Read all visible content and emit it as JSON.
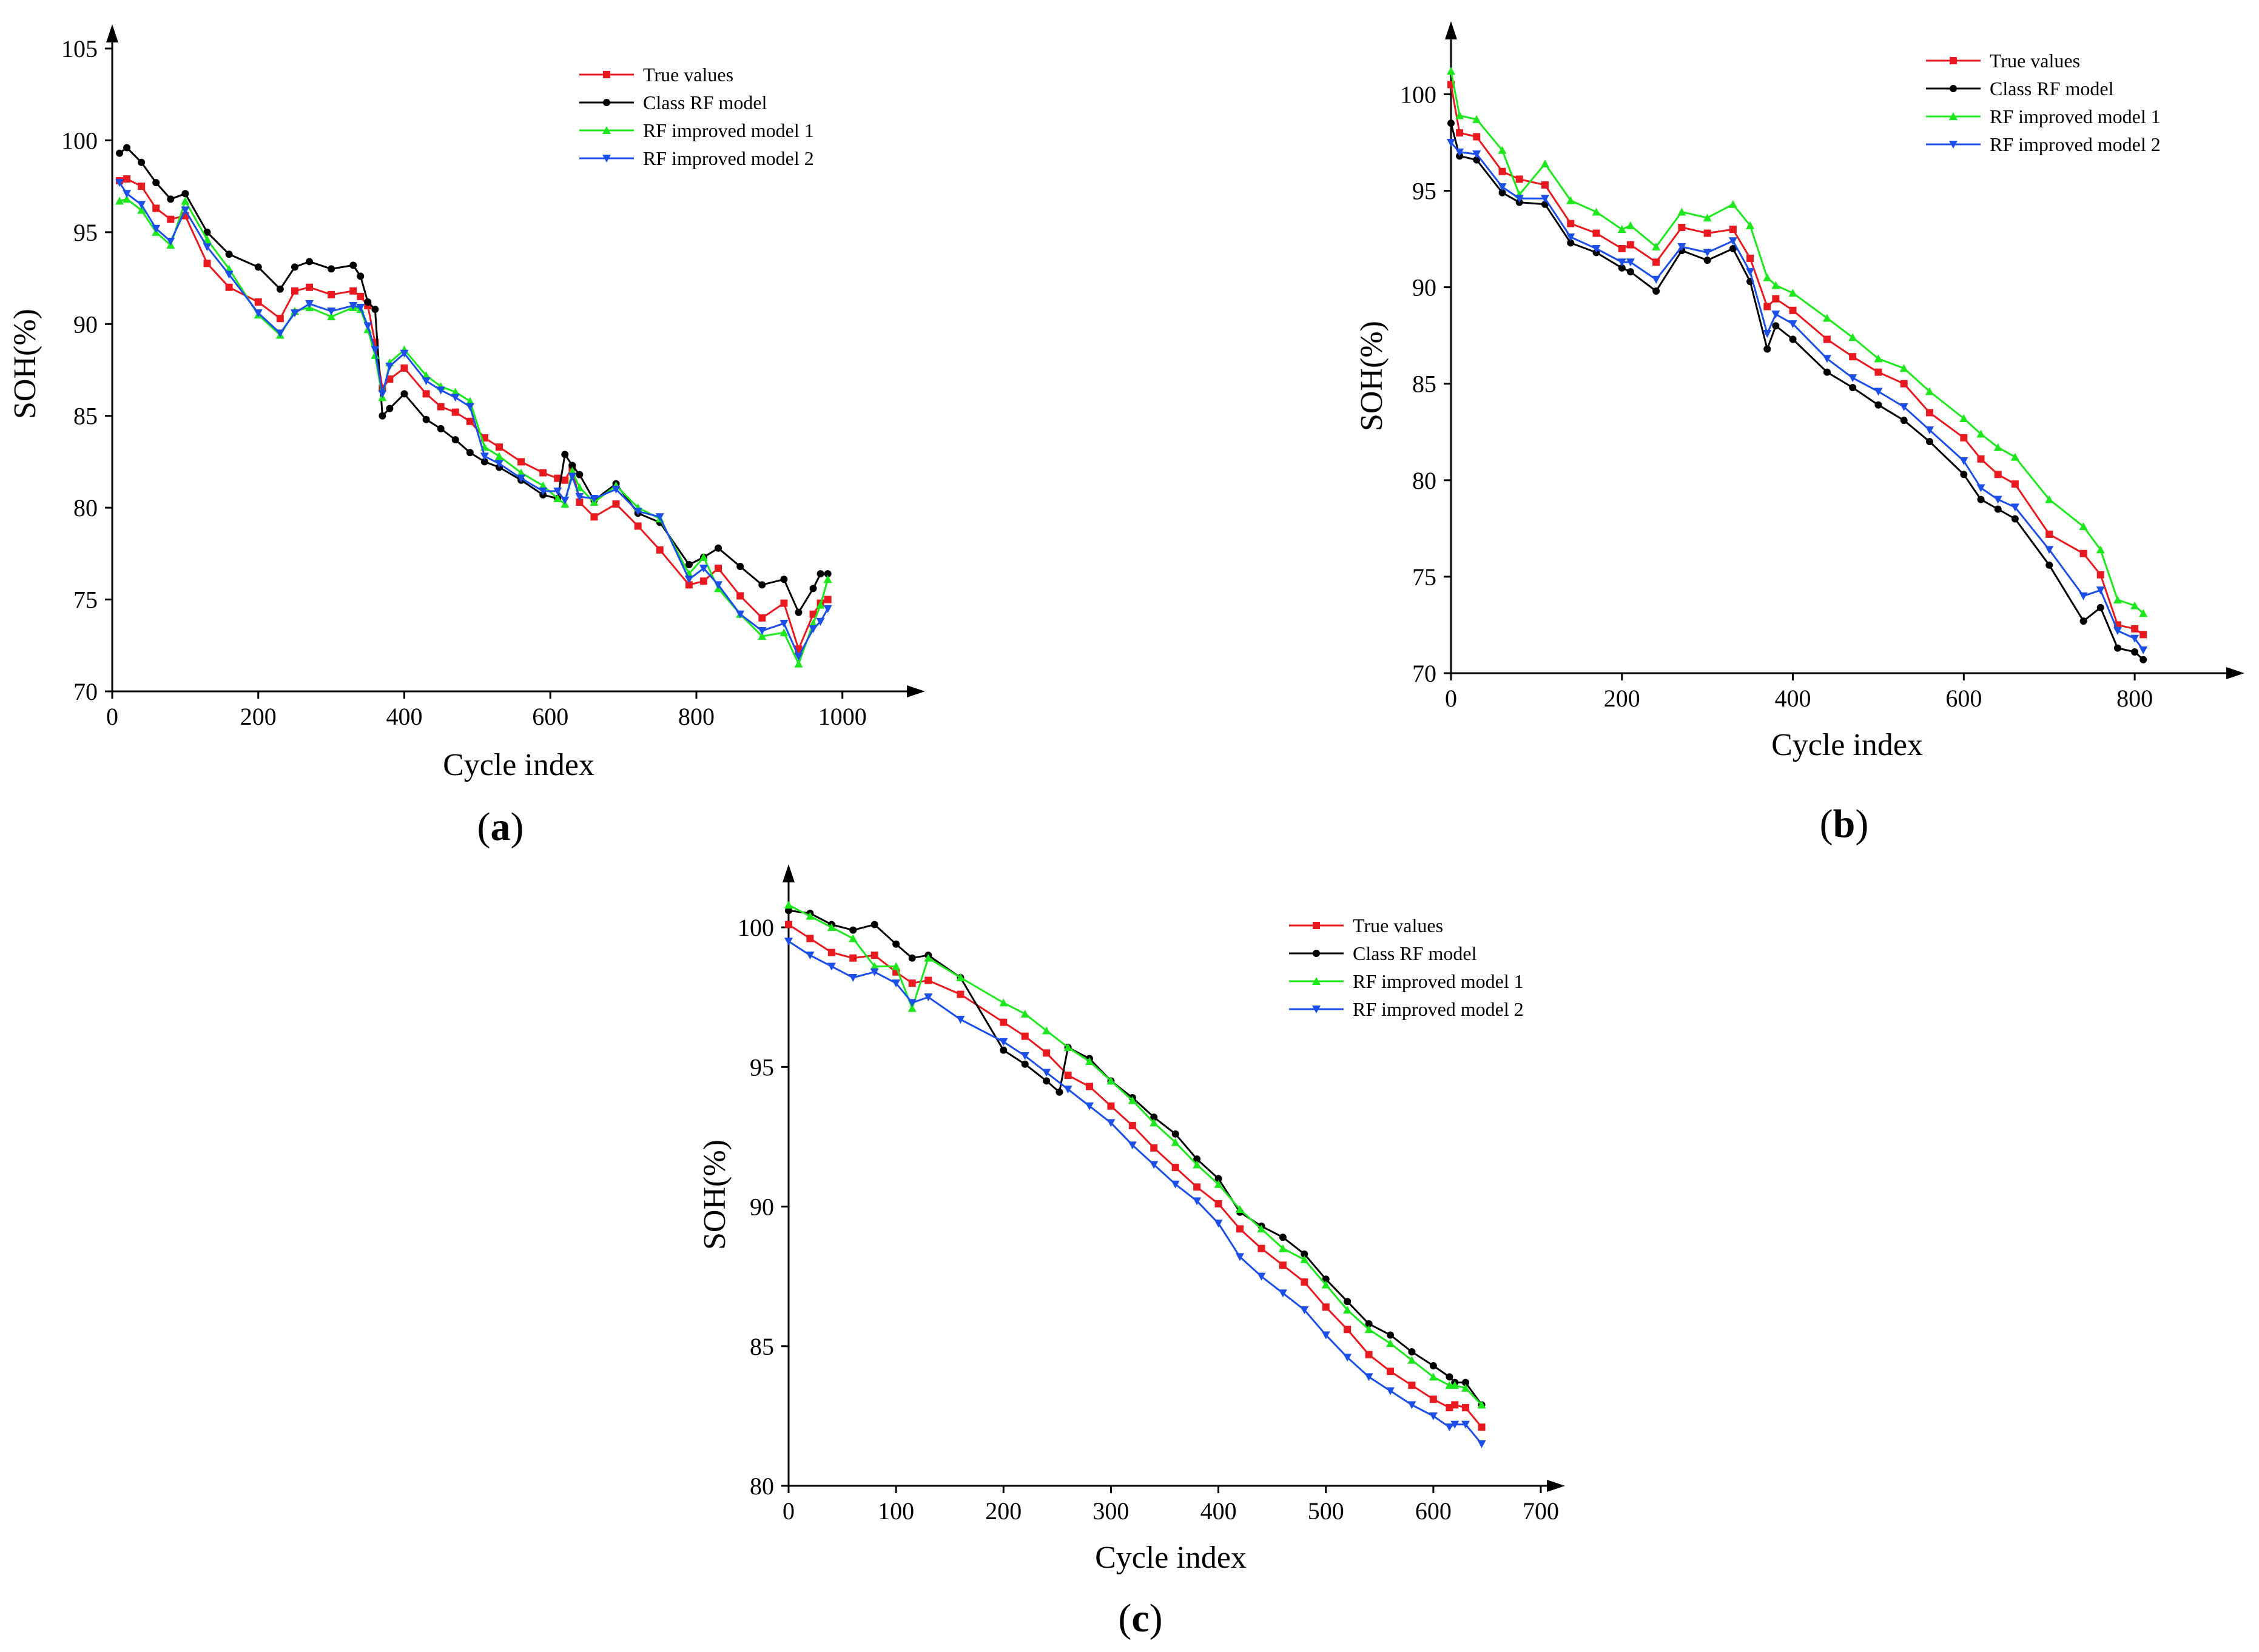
{
  "figure": {
    "series_names": [
      "True values",
      "Class RF model",
      "RF improved model 1",
      "RF improved model 2"
    ],
    "series_colors": [
      "#e8191f",
      "#000000",
      "#1de81d",
      "#1c4ee8"
    ],
    "series_markers": [
      "square",
      "circle",
      "triangle-up",
      "triangle-down"
    ]
  },
  "chart_data": [
    {
      "panel": "a",
      "type": "line",
      "label_open": "(",
      "label_letter": "a",
      "label_close": ")",
      "xlabel": "Cycle index",
      "ylabel": "SOH(%)",
      "xlim": [
        0,
        1080
      ],
      "ylim": [
        70,
        105
      ],
      "xticks": [
        0,
        200,
        400,
        600,
        800,
        1000
      ],
      "yticks": [
        70,
        75,
        80,
        85,
        90,
        95,
        100,
        105
      ],
      "series": [
        {
          "name": "True values",
          "x": [
            10,
            20,
            40,
            60,
            80,
            100,
            130,
            160,
            200,
            230,
            250,
            270,
            300,
            330,
            340,
            350,
            360,
            370,
            380,
            400,
            430,
            450,
            470,
            490,
            510,
            530,
            560,
            590,
            610,
            620,
            630,
            640,
            660,
            690,
            720,
            750,
            790,
            810,
            830,
            860,
            890,
            920,
            940,
            960,
            970,
            980
          ],
          "y": [
            97.8,
            97.9,
            97.5,
            96.3,
            95.7,
            95.9,
            93.3,
            92.0,
            91.2,
            90.3,
            91.8,
            92.0,
            91.6,
            91.8,
            91.5,
            91.0,
            89.0,
            86.5,
            87.0,
            87.6,
            86.2,
            85.5,
            85.2,
            84.7,
            83.8,
            83.3,
            82.5,
            81.9,
            81.6,
            81.5,
            82.2,
            80.3,
            79.5,
            80.2,
            79.0,
            77.7,
            75.8,
            76.0,
            76.7,
            75.2,
            74.0,
            74.8,
            72.3,
            74.2,
            74.8,
            75.0
          ]
        },
        {
          "name": "Class RF model",
          "x": [
            10,
            20,
            40,
            60,
            80,
            100,
            130,
            160,
            200,
            230,
            250,
            270,
            300,
            330,
            340,
            350,
            360,
            370,
            380,
            400,
            430,
            450,
            470,
            490,
            510,
            530,
            560,
            590,
            610,
            620,
            630,
            640,
            660,
            690,
            720,
            750,
            790,
            810,
            830,
            860,
            890,
            920,
            940,
            960,
            970,
            980
          ],
          "y": [
            99.3,
            99.6,
            98.8,
            97.7,
            96.8,
            97.1,
            95.0,
            93.8,
            93.1,
            91.9,
            93.1,
            93.4,
            93.0,
            93.2,
            92.6,
            91.2,
            90.8,
            85.0,
            85.4,
            86.2,
            84.8,
            84.3,
            83.7,
            83.0,
            82.5,
            82.2,
            81.5,
            80.7,
            80.5,
            82.9,
            82.3,
            81.8,
            80.4,
            81.3,
            79.7,
            79.2,
            76.9,
            77.3,
            77.8,
            76.8,
            75.8,
            76.1,
            74.3,
            75.6,
            76.4,
            76.4
          ]
        },
        {
          "name": "RF improved model 1",
          "x": [
            10,
            20,
            40,
            60,
            80,
            100,
            130,
            160,
            200,
            230,
            250,
            270,
            300,
            330,
            340,
            350,
            360,
            370,
            380,
            400,
            430,
            450,
            470,
            490,
            510,
            530,
            560,
            590,
            610,
            620,
            630,
            640,
            660,
            690,
            720,
            750,
            790,
            810,
            830,
            860,
            890,
            920,
            940,
            960,
            970,
            980
          ],
          "y": [
            96.7,
            96.8,
            96.2,
            95.0,
            94.3,
            96.7,
            94.6,
            93.0,
            90.5,
            89.4,
            90.7,
            90.9,
            90.4,
            90.9,
            90.8,
            89.7,
            88.3,
            86.0,
            87.9,
            88.6,
            87.2,
            86.6,
            86.3,
            85.8,
            83.3,
            82.8,
            81.9,
            81.2,
            80.5,
            80.2,
            82.0,
            81.1,
            80.3,
            81.2,
            80.0,
            79.4,
            76.4,
            77.3,
            75.6,
            74.2,
            73.0,
            73.2,
            71.5,
            73.7,
            74.7,
            76.1
          ]
        },
        {
          "name": "RF improved model 2",
          "x": [
            10,
            20,
            40,
            60,
            80,
            100,
            130,
            160,
            200,
            230,
            250,
            270,
            300,
            330,
            340,
            350,
            360,
            370,
            380,
            400,
            430,
            450,
            470,
            490,
            510,
            530,
            560,
            590,
            610,
            620,
            630,
            640,
            660,
            690,
            720,
            750,
            790,
            810,
            830,
            860,
            890,
            920,
            940,
            960,
            970,
            980
          ],
          "y": [
            97.7,
            97.1,
            96.5,
            95.2,
            94.5,
            96.2,
            94.2,
            92.7,
            90.6,
            89.5,
            90.6,
            91.1,
            90.7,
            91.0,
            90.9,
            89.9,
            88.6,
            86.2,
            87.7,
            88.4,
            86.9,
            86.4,
            86.0,
            85.5,
            82.8,
            82.4,
            81.6,
            80.9,
            80.9,
            80.4,
            81.7,
            80.6,
            80.5,
            81.0,
            79.8,
            79.5,
            76.1,
            76.7,
            75.8,
            74.2,
            73.3,
            73.7,
            71.9,
            73.4,
            73.8,
            74.5
          ]
        }
      ]
    },
    {
      "panel": "b",
      "type": "line",
      "label_open": "(",
      "label_letter": "b",
      "label_close": ")",
      "xlabel": "Cycle index",
      "ylabel": "SOH(%)",
      "xlim": [
        0,
        900
      ],
      "ylim": [
        70,
        103
      ],
      "xticks": [
        0,
        200,
        400,
        600,
        800
      ],
      "yticks": [
        70,
        75,
        80,
        85,
        90,
        95,
        100
      ],
      "series": [
        {
          "name": "True values",
          "x": [
            0,
            10,
            30,
            60,
            80,
            110,
            140,
            170,
            200,
            210,
            240,
            270,
            300,
            330,
            350,
            370,
            380,
            400,
            440,
            470,
            500,
            530,
            560,
            600,
            620,
            640,
            660,
            700,
            740,
            760,
            780,
            800,
            810
          ],
          "y": [
            100.5,
            98.0,
            97.8,
            96.0,
            95.6,
            95.3,
            93.3,
            92.8,
            92.0,
            92.2,
            91.3,
            93.1,
            92.8,
            93.0,
            91.5,
            89.0,
            89.4,
            88.8,
            87.3,
            86.4,
            85.6,
            85.0,
            83.5,
            82.2,
            81.1,
            80.3,
            79.8,
            77.2,
            76.2,
            75.1,
            72.5,
            72.3,
            72.0
          ]
        },
        {
          "name": "Class RF model",
          "x": [
            0,
            10,
            30,
            60,
            80,
            110,
            140,
            170,
            200,
            210,
            240,
            270,
            300,
            330,
            350,
            370,
            380,
            400,
            440,
            470,
            500,
            530,
            560,
            600,
            620,
            640,
            660,
            700,
            740,
            760,
            780,
            800,
            810
          ],
          "y": [
            98.5,
            96.8,
            96.6,
            94.9,
            94.4,
            94.3,
            92.3,
            91.8,
            91.0,
            90.8,
            89.8,
            91.9,
            91.4,
            92.0,
            90.3,
            86.8,
            88.0,
            87.3,
            85.6,
            84.8,
            83.9,
            83.1,
            82.0,
            80.3,
            79.0,
            78.5,
            78.0,
            75.6,
            72.7,
            73.4,
            71.3,
            71.1,
            70.7
          ]
        },
        {
          "name": "RF improved model 1",
          "x": [
            0,
            10,
            30,
            60,
            80,
            110,
            140,
            170,
            200,
            210,
            240,
            270,
            300,
            330,
            350,
            370,
            380,
            400,
            440,
            470,
            500,
            530,
            560,
            600,
            620,
            640,
            660,
            700,
            740,
            760,
            780,
            800,
            810
          ],
          "y": [
            101.2,
            98.9,
            98.7,
            97.1,
            94.8,
            96.4,
            94.5,
            93.9,
            93.0,
            93.2,
            92.1,
            93.9,
            93.6,
            94.3,
            93.2,
            90.5,
            90.1,
            89.7,
            88.4,
            87.4,
            86.3,
            85.8,
            84.6,
            83.2,
            82.4,
            81.7,
            81.2,
            79.0,
            77.6,
            76.4,
            73.8,
            73.5,
            73.1
          ]
        },
        {
          "name": "RF improved model 2",
          "x": [
            0,
            10,
            30,
            60,
            80,
            110,
            140,
            170,
            200,
            210,
            240,
            270,
            300,
            330,
            350,
            370,
            380,
            400,
            440,
            470,
            500,
            530,
            560,
            600,
            620,
            640,
            660,
            700,
            740,
            760,
            780,
            800,
            810
          ],
          "y": [
            97.5,
            97.0,
            96.9,
            95.2,
            94.6,
            94.6,
            92.6,
            92.0,
            91.3,
            91.3,
            90.4,
            92.1,
            91.8,
            92.4,
            90.8,
            87.6,
            88.6,
            88.1,
            86.3,
            85.3,
            84.6,
            83.8,
            82.6,
            81.0,
            79.6,
            79.0,
            78.6,
            76.4,
            74.0,
            74.3,
            72.2,
            71.8,
            71.2
          ]
        }
      ]
    },
    {
      "panel": "c",
      "type": "line",
      "label_open": "(",
      "label_letter": "c",
      "label_close": ")",
      "xlabel": "Cycle index",
      "ylabel": "SOH(%)",
      "xlim": [
        0,
        700
      ],
      "ylim": [
        80,
        101.5
      ],
      "xticks": [
        0,
        100,
        200,
        300,
        400,
        500,
        600,
        700
      ],
      "yticks": [
        80,
        85,
        90,
        95,
        100
      ],
      "series": [
        {
          "name": "True values",
          "x": [
            0,
            20,
            40,
            60,
            80,
            100,
            115,
            130,
            160,
            200,
            220,
            240,
            260,
            280,
            300,
            320,
            340,
            360,
            380,
            400,
            420,
            440,
            460,
            480,
            500,
            520,
            540,
            560,
            580,
            600,
            615,
            620,
            630,
            645
          ],
          "y": [
            100.1,
            99.6,
            99.1,
            98.9,
            99.0,
            98.4,
            98.0,
            98.1,
            97.6,
            96.6,
            96.1,
            95.5,
            94.7,
            94.3,
            93.6,
            92.9,
            92.1,
            91.4,
            90.7,
            90.1,
            89.2,
            88.5,
            87.9,
            87.3,
            86.4,
            85.6,
            84.7,
            84.1,
            83.6,
            83.1,
            82.8,
            82.9,
            82.8,
            82.1
          ]
        },
        {
          "name": "Class RF model",
          "x": [
            0,
            20,
            40,
            60,
            80,
            100,
            115,
            130,
            160,
            200,
            220,
            240,
            252,
            260,
            280,
            300,
            320,
            340,
            360,
            380,
            400,
            420,
            440,
            460,
            480,
            500,
            520,
            540,
            560,
            580,
            600,
            615,
            620,
            630,
            645
          ],
          "y": [
            100.6,
            100.5,
            100.1,
            99.9,
            100.1,
            99.4,
            98.9,
            99.0,
            98.2,
            95.6,
            95.1,
            94.5,
            94.1,
            95.7,
            95.3,
            94.5,
            93.9,
            93.2,
            92.6,
            91.7,
            91.0,
            89.8,
            89.3,
            88.9,
            88.3,
            87.4,
            86.6,
            85.8,
            85.4,
            84.8,
            84.3,
            83.9,
            83.7,
            83.7,
            82.9
          ]
        },
        {
          "name": "RF improved model 1",
          "x": [
            0,
            20,
            40,
            60,
            80,
            100,
            115,
            130,
            160,
            200,
            220,
            240,
            260,
            280,
            300,
            320,
            340,
            360,
            380,
            400,
            420,
            440,
            460,
            480,
            500,
            520,
            540,
            560,
            580,
            600,
            615,
            620,
            630,
            645
          ],
          "y": [
            100.8,
            100.4,
            100.0,
            99.6,
            98.6,
            98.6,
            97.1,
            98.9,
            98.2,
            97.3,
            96.9,
            96.3,
            95.7,
            95.2,
            94.5,
            93.8,
            93.0,
            92.3,
            91.5,
            90.8,
            89.9,
            89.2,
            88.5,
            88.1,
            87.2,
            86.3,
            85.6,
            85.1,
            84.5,
            83.9,
            83.6,
            83.6,
            83.5,
            82.9
          ]
        },
        {
          "name": "RF improved model 2",
          "x": [
            0,
            20,
            40,
            60,
            80,
            100,
            115,
            130,
            160,
            200,
            220,
            240,
            260,
            280,
            300,
            320,
            340,
            360,
            380,
            400,
            420,
            440,
            460,
            480,
            500,
            520,
            540,
            560,
            580,
            600,
            615,
            620,
            630,
            645
          ],
          "y": [
            99.5,
            99.0,
            98.6,
            98.2,
            98.4,
            98.0,
            97.3,
            97.5,
            96.7,
            95.9,
            95.4,
            94.8,
            94.2,
            93.6,
            93.0,
            92.2,
            91.5,
            90.8,
            90.2,
            89.4,
            88.2,
            87.5,
            86.9,
            86.3,
            85.4,
            84.6,
            83.9,
            83.4,
            82.9,
            82.5,
            82.1,
            82.2,
            82.2,
            81.5
          ]
        }
      ]
    }
  ]
}
